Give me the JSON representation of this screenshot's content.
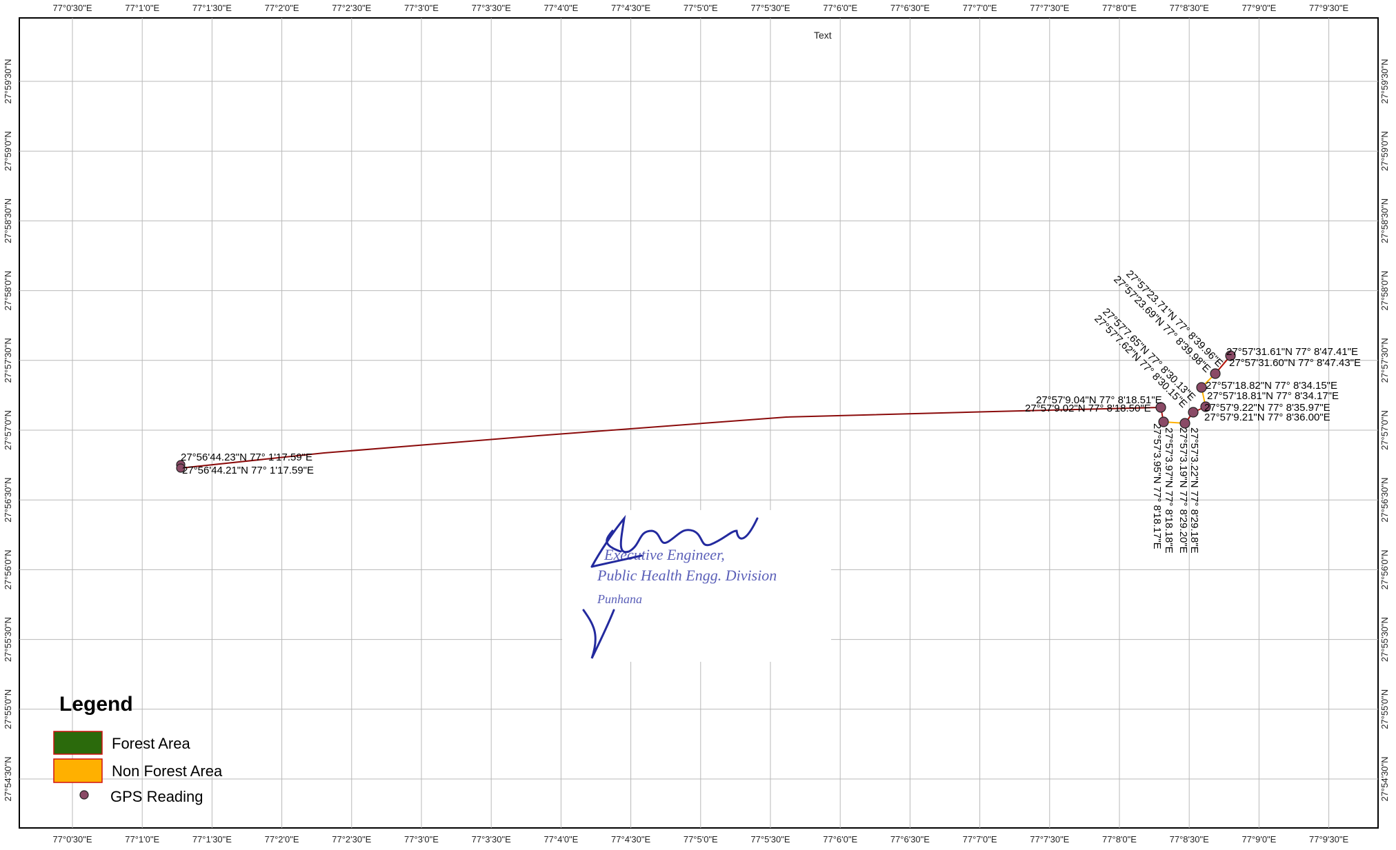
{
  "map": {
    "text_note": "Text",
    "lon_labels": [
      "77°0'30\"E",
      "77°1'0\"E",
      "77°1'30\"E",
      "77°2'0\"E",
      "77°2'30\"E",
      "77°3'0\"E",
      "77°3'30\"E",
      "77°4'0\"E",
      "77°4'30\"E",
      "77°5'0\"E",
      "77°5'30\"E",
      "77°6'0\"E",
      "77°6'30\"E",
      "77°7'0\"E",
      "77°7'30\"E",
      "77°8'0\"E",
      "77°8'30\"E",
      "77°9'0\"E",
      "77°9'30\"E"
    ],
    "lat_labels": [
      "27°59'30\"N",
      "27°59'0\"N",
      "27°58'30\"N",
      "27°58'0\"N",
      "27°57'30\"N",
      "27°57'0\"N",
      "27°56'30\"N",
      "27°56'0\"N",
      "27°55'30\"N",
      "27°55'0\"N",
      "27°54'30\"N"
    ],
    "colors": {
      "route": "#b01010",
      "non_forest": "#ffb000",
      "forest": "#2b6a0c",
      "gps_point": "#8a4a66",
      "grid": "#b8b8b8",
      "stamp": "#5a5fb8"
    },
    "gps_labels": [
      "27°56'44.23\"N 77° 1'17.59\"E",
      "27°56'44.21\"N 77° 1'17.59\"E",
      "27°57'9.04\"N 77° 8'18.51\"E",
      "27°57'9.02\"N 77° 8'18.50\"E",
      "27°57'31.61\"N 77° 8'47.41\"E",
      "27°57'31.60\"N 77° 8'47.43\"E",
      "27°57'18.82\"N 77° 8'34.15\"E",
      "27°57'18.81\"N 77° 8'34.17\"E",
      "27°57'9.22\"N 77° 8'35.97\"E",
      "27°57'9.21\"N 77° 8'36.00\"E",
      "27°57'23.71\"N 77° 8'39.96\"E",
      "27°57'23.69\"N 77° 8'39.98\"E",
      "27°57'7.65\"N 77° 8'30.13\"E",
      "27°57'7.62\"N 77° 8'30.15\"E",
      "27°57'3.97\"N 77° 8'18.18\"E",
      "27°57'3.95\"N 77° 8'18.17\"E",
      "27°57'3.22\"N 77° 8'29.18\"E",
      "27°57'3.19\"N 77° 8'29.20\"E"
    ],
    "gps_points": [
      {
        "lat": "27°56'44.2\"N",
        "lon": "77°1'17.6\"E"
      },
      {
        "lat": "27°57'9.0\"N",
        "lon": "77°8'18.5\"E"
      },
      {
        "lat": "27°57'31.6\"N",
        "lon": "77°8'47.4\"E"
      },
      {
        "lat": "27°57'18.8\"N",
        "lon": "77°8'34.2\"E"
      },
      {
        "lat": "27°57'9.2\"N",
        "lon": "77°8'36.0\"E"
      },
      {
        "lat": "27°57'23.7\"N",
        "lon": "77°8'40.0\"E"
      },
      {
        "lat": "27°57'7.6\"N",
        "lon": "77°8'30.1\"E"
      },
      {
        "lat": "27°57'4.0\"N",
        "lon": "77°8'18.2\"E"
      },
      {
        "lat": "27°57'3.2\"N",
        "lon": "77°8'29.2\"E"
      }
    ]
  },
  "legend": {
    "title": "Legend",
    "items": [
      {
        "label": "Forest Area",
        "color": "#2b6a0c"
      },
      {
        "label": "Non Forest Area",
        "color": "#ffb000"
      },
      {
        "label": "GPS Reading",
        "color": "#8a4a66"
      }
    ]
  },
  "stamp": {
    "line1": "Executive Engineer,",
    "line2": "Public Health Engg. Division",
    "line3": "Punhana"
  }
}
